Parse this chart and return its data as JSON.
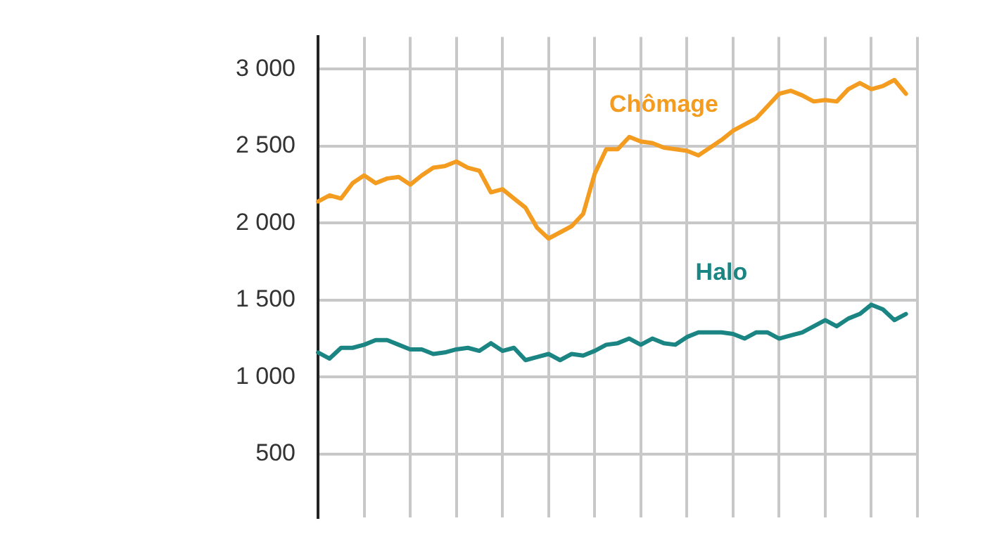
{
  "chart_data": {
    "type": "line",
    "categories": [
      null,
      null,
      null,
      null,
      null,
      null,
      null,
      null,
      null,
      null,
      null,
      null,
      null,
      null,
      null,
      null,
      null,
      null,
      null,
      null,
      null,
      null,
      null,
      null,
      null,
      null,
      null,
      null,
      null,
      null,
      null,
      null,
      null,
      null,
      null,
      null,
      null,
      null,
      null,
      null,
      null,
      null,
      null,
      null,
      null,
      null,
      null,
      null,
      null,
      null,
      null,
      null,
      null
    ],
    "series": [
      {
        "name": "Chômage",
        "color": "#f39c1f",
        "values": [
          2140,
          2180,
          2160,
          2260,
          2310,
          2260,
          2290,
          2300,
          2250,
          2310,
          2360,
          2370,
          2400,
          2360,
          2340,
          2200,
          2220,
          2160,
          2100,
          1970,
          1900,
          1940,
          1980,
          2060,
          2320,
          2480,
          2480,
          2560,
          2530,
          2520,
          2490,
          2480,
          2470,
          2440,
          2490,
          2540,
          2600,
          2640,
          2680,
          2760,
          2840,
          2860,
          2830,
          2790,
          2800,
          2790,
          2870,
          2910,
          2870,
          2890,
          2930,
          2840,
          null
        ]
      },
      {
        "name": "Halo",
        "color": "#1a8582",
        "values": [
          1160,
          1120,
          1190,
          1190,
          1210,
          1240,
          1240,
          1210,
          1180,
          1180,
          1150,
          1160,
          1180,
          1190,
          1170,
          1220,
          1170,
          1190,
          1110,
          1130,
          1150,
          1110,
          1150,
          1140,
          1170,
          1210,
          1220,
          1250,
          1210,
          1250,
          1220,
          1210,
          1260,
          1290,
          1290,
          1290,
          1280,
          1250,
          1290,
          1290,
          1250,
          1270,
          1290,
          1330,
          1370,
          1330,
          1380,
          1410,
          1470,
          1440,
          1370,
          1410,
          null
        ]
      }
    ],
    "ylim": [
      90,
      3210
    ],
    "yticks": [
      {
        "value": 500,
        "label": "500"
      },
      {
        "value": 1000,
        "label": "1 000"
      },
      {
        "value": 1500,
        "label": "1 500"
      },
      {
        "value": 2000,
        "label": "2 000"
      },
      {
        "value": 2500,
        "label": "2 500"
      },
      {
        "value": 3000,
        "label": "3 000"
      }
    ],
    "grid": true,
    "tick_labels": "y",
    "marker": "none",
    "line_style": "solid",
    "legend": false
  }
}
